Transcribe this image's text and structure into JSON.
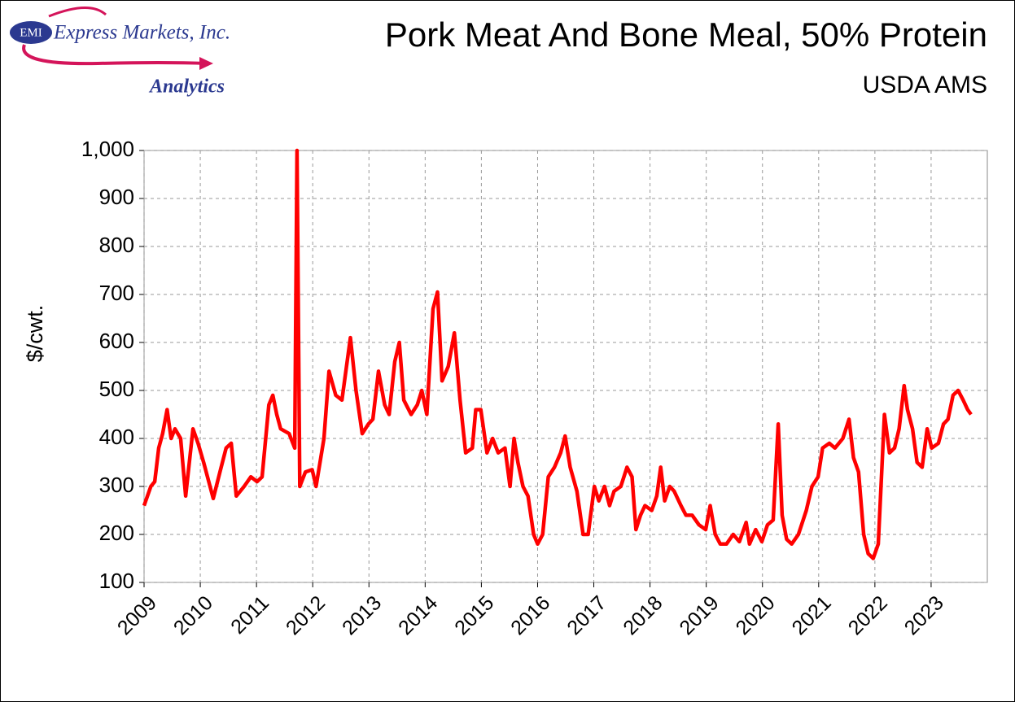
{
  "chart_data": {
    "type": "line",
    "title": "Pork Meat And Bone Meal, 50% Protein",
    "subtitle": "USDA AMS",
    "y_label": "$/cwt.",
    "annotations": [
      "EMI",
      "Express Markets, Inc.",
      "Analytics"
    ],
    "color": "#ff0000",
    "x": [
      2009.0,
      2009.12,
      2009.19,
      2009.26,
      2009.33,
      2009.41,
      2009.48,
      2009.55,
      2009.65,
      2009.74,
      2009.87,
      2009.96,
      2010.06,
      2010.23,
      2010.35,
      2010.46,
      2010.55,
      2010.64,
      2010.78,
      2010.9,
      2011.01,
      2011.1,
      2011.22,
      2011.29,
      2011.36,
      2011.43,
      2011.58,
      2011.68,
      2011.72,
      2011.77,
      2011.87,
      2011.99,
      2012.06,
      2012.2,
      2012.29,
      2012.41,
      2012.52,
      2012.67,
      2012.77,
      2012.88,
      2012.99,
      2013.07,
      2013.17,
      2013.28,
      2013.36,
      2013.46,
      2013.54,
      2013.62,
      2013.75,
      2013.86,
      2013.94,
      2014.03,
      2014.14,
      2014.22,
      2014.3,
      2014.41,
      2014.52,
      2014.62,
      2014.72,
      2014.84,
      2014.9,
      2014.99,
      2015.1,
      2015.2,
      2015.3,
      2015.42,
      2015.51,
      2015.58,
      2015.65,
      2015.74,
      2015.83,
      2015.93,
      2016.0,
      2016.09,
      2016.19,
      2016.3,
      2016.41,
      2016.49,
      2016.58,
      2016.7,
      2016.81,
      2016.9,
      2017.01,
      2017.09,
      2017.19,
      2017.28,
      2017.36,
      2017.48,
      2017.59,
      2017.68,
      2017.75,
      2017.83,
      2017.91,
      2018.03,
      2018.12,
      2018.19,
      2018.26,
      2018.35,
      2018.43,
      2018.55,
      2018.64,
      2018.75,
      2018.87,
      2018.99,
      2019.07,
      2019.16,
      2019.25,
      2019.36,
      2019.48,
      2019.59,
      2019.71,
      2019.77,
      2019.88,
      2019.99,
      2020.09,
      2020.19,
      2020.28,
      2020.35,
      2020.43,
      2020.52,
      2020.64,
      2020.78,
      2020.88,
      2020.99,
      2021.07,
      2021.19,
      2021.29,
      2021.43,
      2021.54,
      2021.62,
      2021.71,
      2021.8,
      2021.88,
      2021.97,
      2022.06,
      2022.17,
      2022.26,
      2022.35,
      2022.43,
      2022.52,
      2022.58,
      2022.67,
      2022.75,
      2022.84,
      2022.93,
      2023.01,
      2023.13,
      2023.22,
      2023.3,
      2023.39,
      2023.48,
      2023.57,
      2023.65,
      2023.71
    ],
    "values": [
      260,
      300,
      310,
      380,
      410,
      460,
      400,
      420,
      400,
      280,
      420,
      390,
      350,
      275,
      330,
      380,
      390,
      280,
      300,
      320,
      310,
      320,
      470,
      490,
      450,
      420,
      410,
      380,
      1000,
      300,
      330,
      335,
      300,
      400,
      540,
      490,
      480,
      610,
      500,
      410,
      430,
      440,
      540,
      470,
      450,
      560,
      600,
      480,
      450,
      470,
      500,
      450,
      670,
      705,
      520,
      550,
      620,
      480,
      370,
      380,
      460,
      460,
      370,
      400,
      370,
      380,
      300,
      400,
      350,
      300,
      280,
      200,
      180,
      200,
      320,
      340,
      370,
      405,
      340,
      290,
      200,
      200,
      300,
      270,
      300,
      260,
      290,
      300,
      340,
      320,
      210,
      240,
      260,
      250,
      280,
      340,
      270,
      300,
      290,
      260,
      240,
      240,
      220,
      210,
      260,
      200,
      180,
      180,
      200,
      185,
      225,
      180,
      210,
      185,
      220,
      230,
      430,
      240,
      190,
      180,
      200,
      250,
      300,
      320,
      380,
      390,
      380,
      400,
      440,
      360,
      330,
      200,
      160,
      150,
      180,
      450,
      370,
      380,
      420,
      510,
      460,
      420,
      350,
      340,
      420,
      380,
      390,
      430,
      440,
      490,
      500,
      480,
      460,
      450
    ],
    "xlim": [
      2009,
      2024
    ],
    "xticks": [
      2009,
      2010,
      2011,
      2012,
      2013,
      2014,
      2015,
      2016,
      2017,
      2018,
      2019,
      2020,
      2021,
      2022,
      2023
    ],
    "ylim": [
      100,
      1000
    ],
    "yticks": [
      100,
      200,
      300,
      400,
      500,
      600,
      700,
      800,
      900,
      {
        "value": 1000,
        "label": "1,000"
      }
    ],
    "grid": true
  }
}
